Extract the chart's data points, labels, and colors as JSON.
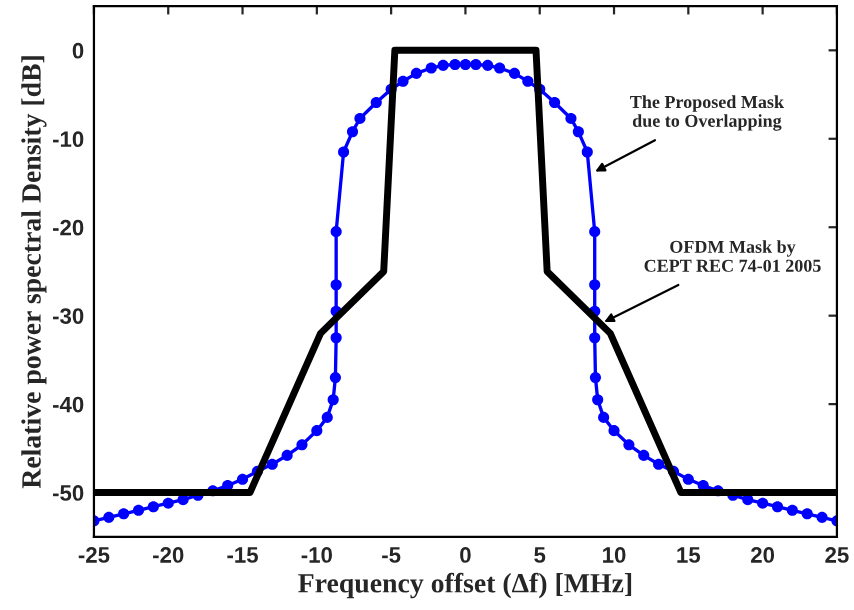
{
  "chart_data": {
    "type": "line",
    "xlabel": "Frequency offset (Δf) [MHz]",
    "ylabel": "Relative power spectral Density [dB]",
    "series": [
      {
        "color": "#0000ff",
        "marker": "circle",
        "x": [
          -25,
          -24,
          -23,
          -22,
          -21,
          -20,
          -19,
          -18,
          -17,
          -16,
          -15,
          -14,
          -13,
          -12,
          -11,
          -10,
          -9.3,
          -8.9,
          -8.75,
          -8.7,
          -8.7,
          -8.7,
          -8.7,
          -8.2,
          -7.6,
          -7.1,
          -6,
          -5,
          -4.2,
          -3.3,
          -2.3,
          -1.5,
          -0.7,
          0,
          0.7,
          1.5,
          2.3,
          3.3,
          4.2,
          5,
          6,
          7.1,
          7.6,
          8.2,
          8.7,
          8.7,
          8.7,
          8.7,
          8.75,
          8.9,
          9.3,
          10,
          11,
          12,
          13,
          14,
          15,
          16,
          17,
          18,
          19,
          20,
          21,
          22,
          23,
          24,
          25
        ],
        "values": [
          -53.2,
          -52.8,
          -52.4,
          -52,
          -51.6,
          -51.2,
          -50.8,
          -50.3,
          -49.8,
          -49.2,
          -48.5,
          -47.6,
          -46.8,
          -45.8,
          -44.6,
          -43,
          -41.5,
          -39.5,
          -37,
          -32.5,
          -29.5,
          -26.5,
          -20.5,
          -11.5,
          -9.2,
          -7.7,
          -5.9,
          -4.4,
          -3.5,
          -2.6,
          -2,
          -1.7,
          -1.6,
          -1.6,
          -1.6,
          -1.7,
          -2,
          -2.6,
          -3.5,
          -4.4,
          -5.9,
          -7.7,
          -9.2,
          -11.5,
          -20.5,
          -26.5,
          -29.5,
          -32.5,
          -37,
          -39.5,
          -41.5,
          -43,
          -44.6,
          -45.8,
          -46.8,
          -47.6,
          -48.5,
          -49.2,
          -49.8,
          -50.3,
          -50.8,
          -51.2,
          -51.6,
          -52,
          -52.4,
          -52.8,
          -53.2
        ]
      },
      {
        "color": "#000000",
        "marker": "none",
        "x": [
          -25,
          -14.5,
          -9.75,
          -5.5,
          -4.75,
          4.75,
          5.5,
          9.75,
          14.5,
          25
        ],
        "values": [
          -50,
          -50,
          -32,
          -25,
          0,
          0,
          -25,
          -32,
          -50,
          -50
        ]
      }
    ],
    "xlim": [
      -25,
      25
    ],
    "ylim": [
      -55,
      5
    ],
    "xticks": [
      -25,
      -20,
      -15,
      -10,
      -5,
      0,
      5,
      10,
      15,
      20,
      25
    ],
    "yticks": [
      -50,
      -40,
      -30,
      -20,
      -10,
      0
    ],
    "grid": false,
    "legend": false,
    "annotations": [
      {
        "text": "The Proposed Mask\ndue to Overlapping",
        "x": 8.4,
        "y": -14
      },
      {
        "text": "OFDM Mask by\nCEPT REC 74-01 2005",
        "x": 9,
        "y": -31
      }
    ]
  }
}
